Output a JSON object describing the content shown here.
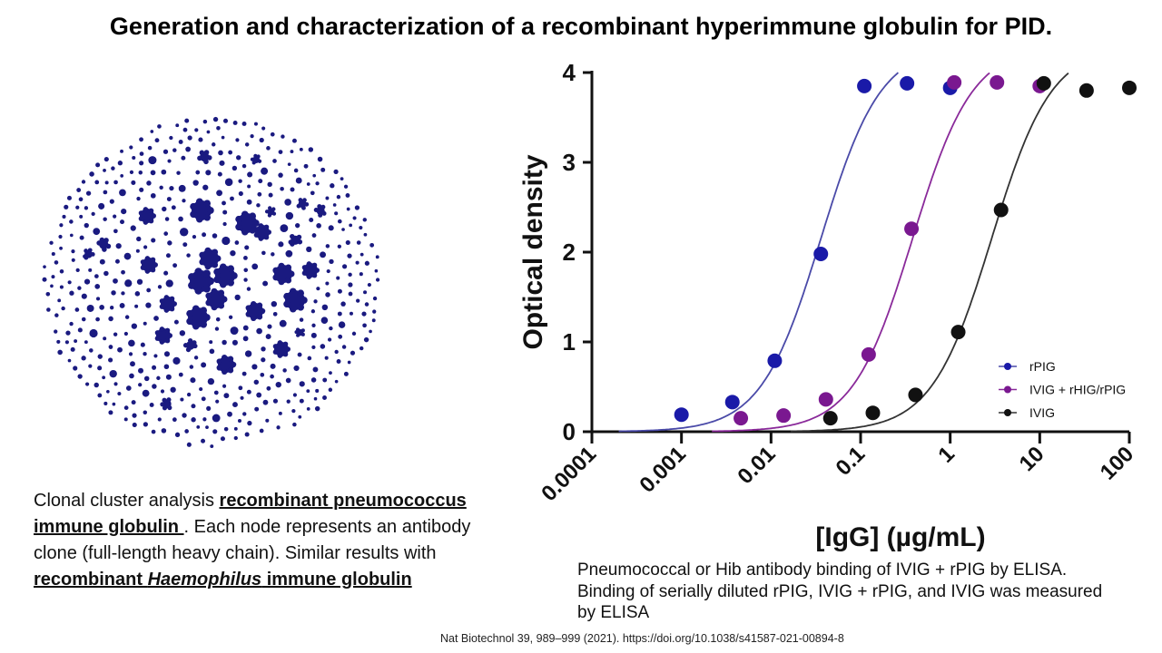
{
  "slide": {
    "title": "Generation and characterization of a recombinant hyperimmune globulin for PID."
  },
  "left_caption": {
    "text1": "Clonal cluster analysis ",
    "link1": "recombinant pneumococcus immune globulin ",
    "text2": ". Each node represents an antibody clone (full-length heavy chain). Similar results with ",
    "link2_italic": "Haemophilus",
    "link2_prefix": "recombinant ",
    "link2_suffix": " immune globulin"
  },
  "right_caption": {
    "text": "Pneumococcal or Hib antibody binding of IVIG + rPIG by ELISA. Binding of serially diluted rPIG, IVIG + rPIG, and IVIG was measured by ELISA"
  },
  "citation": "Nat Biotechnol 39, 989–999 (2021). https://doi.org/10.1038/s41587-021-00894-8",
  "network": {
    "color": "#1a1a80"
  },
  "chart_data": {
    "type": "scatter",
    "xlabel": "[IgG] (µg/mL)",
    "ylabel": "Optical density",
    "xscale": "log",
    "xlim": [
      0.0001,
      100
    ],
    "ylim": [
      0,
      4
    ],
    "xticks": [
      "0.0001",
      "0.001",
      "0.01",
      "0.1",
      "1",
      "10",
      "100"
    ],
    "yticks": [
      "0",
      "1",
      "2",
      "3",
      "4"
    ],
    "legend_position": "bottom-right",
    "series": [
      {
        "name": "rPIG",
        "color": "#1a1aa8",
        "curve_color": "#4a4aa8",
        "ec50": 0.036,
        "hill": 1.3,
        "top": 4.3,
        "x": [
          0.001,
          0.0037,
          0.011,
          0.036,
          0.11,
          0.33,
          1.0
        ],
        "y": [
          0.19,
          0.33,
          0.79,
          1.98,
          3.85,
          3.88,
          3.83
        ]
      },
      {
        "name": "IVIG + rHIG/rPIG",
        "color": "#7a1890",
        "curve_color": "#8a2a9a",
        "ec50": 0.38,
        "hill": 1.3,
        "top": 4.3,
        "x": [
          0.0046,
          0.0138,
          0.041,
          0.123,
          0.37,
          1.11,
          3.33,
          10.0
        ],
        "y": [
          0.15,
          0.18,
          0.36,
          0.86,
          2.26,
          3.89,
          3.89,
          3.85
        ]
      },
      {
        "name": "IVIG",
        "color": "#111111",
        "curve_color": "#333333",
        "ec50": 2.9,
        "hill": 1.3,
        "top": 4.3,
        "x": [
          0.046,
          0.137,
          0.41,
          1.23,
          3.7,
          11.1,
          33.3,
          100
        ],
        "y": [
          0.15,
          0.21,
          0.41,
          1.11,
          2.47,
          3.88,
          3.8,
          3.83
        ]
      }
    ]
  }
}
